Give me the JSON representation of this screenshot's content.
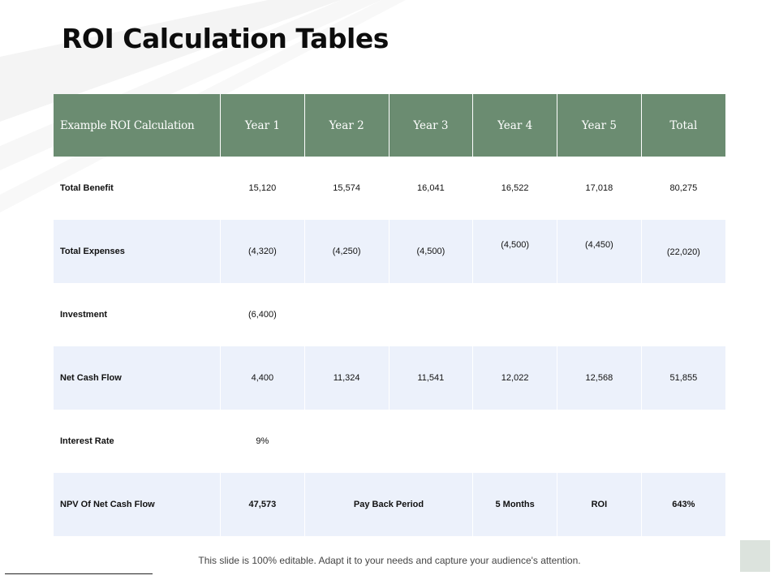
{
  "title": "ROI Calculation Tables",
  "table": {
    "headers": [
      "Example ROI Calculation",
      "Year 1",
      "Year 2",
      "Year 3",
      "Year 4",
      "Year 5",
      "Total"
    ],
    "rows": [
      {
        "label": "Total Benefit",
        "cells": [
          "15,120",
          "15,574",
          "16,041",
          "16,522",
          "17,018",
          "80,275"
        ]
      },
      {
        "label": "Total Expenses",
        "cells": [
          "(4,320)",
          "(4,250)",
          "(4,500)",
          "(4,500)",
          "(4,450)",
          "(22,020)"
        ]
      },
      {
        "label": "Investment",
        "cells": [
          "(6,400)",
          "",
          "",
          "",
          "",
          ""
        ]
      },
      {
        "label": "Net Cash Flow",
        "cells": [
          "4,400",
          "11,324",
          "11,541",
          "12,022",
          "12,568",
          "51,855"
        ]
      },
      {
        "label": "Interest Rate",
        "cells": [
          "9%",
          "",
          "",
          "",
          "",
          ""
        ]
      },
      {
        "label": "NPV Of Net Cash Flow",
        "cells": [
          "47,573",
          "Pay Back Period",
          "5 Months",
          "ROI",
          "643%"
        ]
      }
    ]
  },
  "footer": "This slide is 100% editable. Adapt it to your needs and capture your audience's attention.",
  "colors": {
    "header_bg": "#6b8c71",
    "alt_row_bg": "#ecf1fb",
    "corner_box": "#dce3dd"
  }
}
